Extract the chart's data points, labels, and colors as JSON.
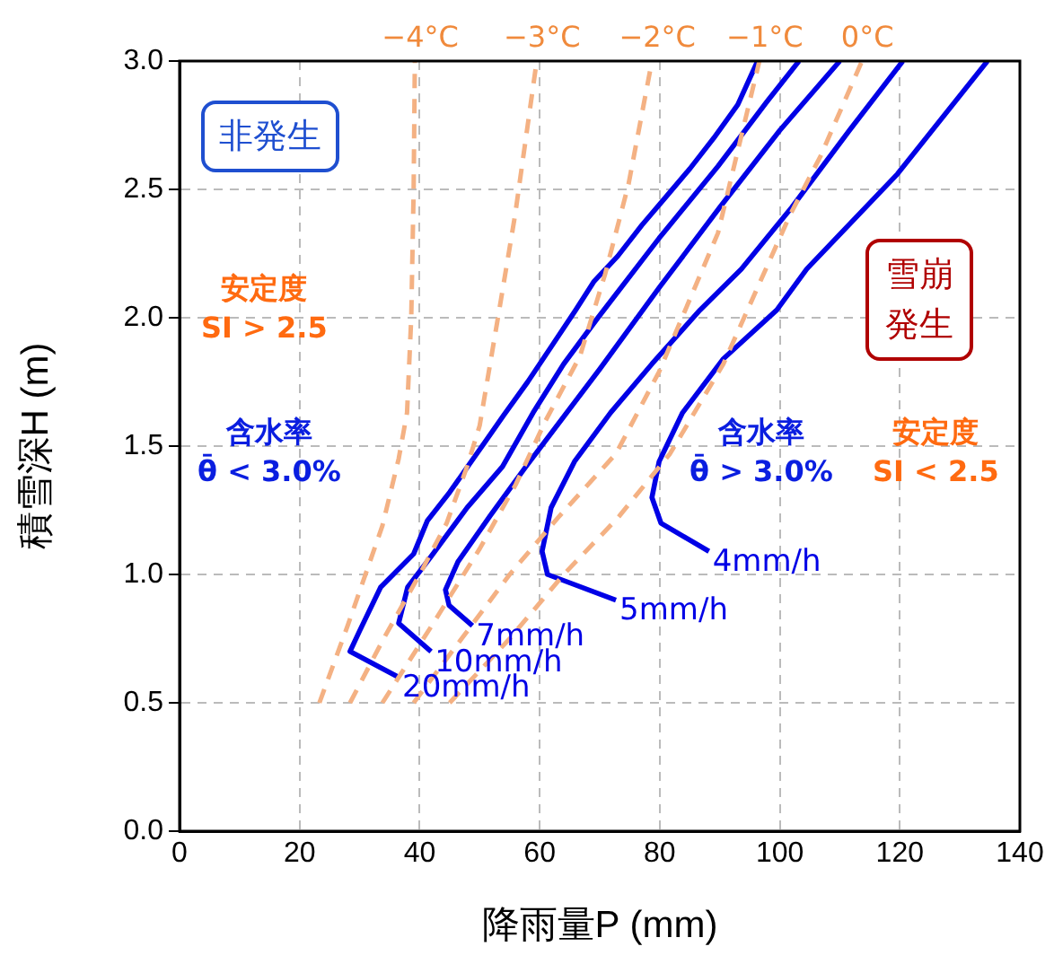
{
  "chart_data": {
    "type": "line",
    "xlabel": "降雨量P (mm)",
    "ylabel": "積雪深H (m)",
    "xlim": [
      0,
      140
    ],
    "xticks": [
      0,
      20,
      40,
      60,
      80,
      100,
      120,
      140
    ],
    "ylim": [
      0,
      3
    ],
    "yticks": [
      {
        "value": 0,
        "label": "0.0"
      },
      {
        "value": 0.5,
        "label": "0.5"
      },
      {
        "value": 1,
        "label": "1.0"
      },
      {
        "value": 1.5,
        "label": "1.5"
      },
      {
        "value": 2,
        "label": "2.0"
      },
      {
        "value": 2.5,
        "label": "2.5"
      },
      {
        "value": 3,
        "label": "3.0"
      }
    ],
    "grid": true,
    "legend": false,
    "marker": "none",
    "series": [
      {
        "name": "−4°C",
        "color": "#f4b183",
        "line_style": "dashed",
        "x": [
          23.3,
          28,
          33.8,
          36.5,
          37.9,
          38.6,
          39,
          39.2
        ],
        "values": [
          0.5,
          0.8,
          1.19,
          1.45,
          1.63,
          2.0,
          2.5,
          3.0
        ]
      },
      {
        "name": "−3°C",
        "color": "#f4b183",
        "line_style": "dashed",
        "x": [
          28.4,
          34,
          40,
          44.5,
          47.9,
          50,
          52.9,
          55.9,
          58,
          59.5
        ],
        "values": [
          0.5,
          0.75,
          1.0,
          1.2,
          1.42,
          1.58,
          1.98,
          2.4,
          2.75,
          3.0
        ]
      },
      {
        "name": "−2°C",
        "color": "#f4b183",
        "line_style": "dashed",
        "x": [
          33.8,
          42,
          50,
          56,
          61,
          66.7,
          70.9,
          74.8,
          78.7
        ],
        "values": [
          0.5,
          0.8,
          1.1,
          1.35,
          1.6,
          1.85,
          2.17,
          2.52,
          3.0
        ]
      },
      {
        "name": "−1°C",
        "color": "#f4b183",
        "line_style": "dashed",
        "x": [
          39,
          47,
          55,
          63,
          72.7,
          79.9,
          89.7,
          96.6
        ],
        "values": [
          0.5,
          0.75,
          1.0,
          1.22,
          1.47,
          1.79,
          2.33,
          3.0
        ]
      },
      {
        "name": "0°C",
        "color": "#f4b183",
        "line_style": "dashed",
        "x": [
          45,
          55,
          64,
          73,
          81.7,
          90.6,
          101.7,
          106.8,
          113.7
        ],
        "values": [
          0.5,
          0.75,
          1.0,
          1.22,
          1.47,
          1.82,
          2.4,
          2.63,
          3.0
        ]
      },
      {
        "name": "20mm/h",
        "color": "#0000e6",
        "line_style": "solid",
        "x": [
          36.5,
          28.4,
          30,
          33.5,
          39,
          41.3,
          45,
          48,
          51,
          54,
          58,
          62,
          66,
          69,
          73,
          77,
          81,
          85,
          89,
          93,
          96.3
        ],
        "values": [
          0.6,
          0.7,
          0.78,
          0.95,
          1.08,
          1.21,
          1.32,
          1.42,
          1.52,
          1.62,
          1.75,
          1.89,
          2.03,
          2.14,
          2.24,
          2.36,
          2.47,
          2.58,
          2.7,
          2.83,
          3.0
        ]
      },
      {
        "name": "10mm/h",
        "color": "#0000e6",
        "line_style": "solid",
        "x": [
          41.9,
          36.5,
          38,
          41.9,
          47.9,
          53.8,
          58.9,
          64,
          69.7,
          79.9,
          89.7,
          97.8,
          103.2
        ],
        "values": [
          0.7,
          0.81,
          0.95,
          1.07,
          1.26,
          1.42,
          1.63,
          1.82,
          2.0,
          2.31,
          2.59,
          2.84,
          3.0
        ]
      },
      {
        "name": "7mm/h",
        "color": "#0000e6",
        "line_style": "solid",
        "x": [
          48.8,
          44.9,
          44.3,
          46.4,
          51.8,
          57.7,
          70,
          80,
          90,
          100,
          110
        ],
        "values": [
          0.8,
          0.88,
          0.94,
          1.05,
          1.23,
          1.42,
          1.8,
          2.12,
          2.43,
          2.73,
          3.0
        ]
      },
      {
        "name": "5mm/h",
        "color": "#0000e6",
        "line_style": "solid",
        "x": [
          72.7,
          61.3,
          60.4,
          61.9,
          65.8,
          71.8,
          78.7,
          86.7,
          93.6,
          102,
          111.6,
          120.5
        ],
        "values": [
          0.9,
          1.0,
          1.09,
          1.26,
          1.44,
          1.63,
          1.82,
          2.03,
          2.19,
          2.43,
          2.73,
          3.0
        ]
      },
      {
        "name": "4mm/h",
        "color": "#0000e6",
        "line_style": "solid",
        "x": [
          88.2,
          80.2,
          78.7,
          79.9,
          83.8,
          90.6,
          99.5,
          104.5,
          119.6,
          134.6
        ],
        "values": [
          1.09,
          1.2,
          1.3,
          1.44,
          1.63,
          1.84,
          2.03,
          2.19,
          2.56,
          3.0
        ]
      }
    ],
    "annotations": [
      "非発生",
      "雪崩発生",
      "安定度\nSI > 2.5",
      "含水率\nθ̄ < 3.0%",
      "含水率\nθ̄ > 3.0%",
      "安定度\nSI < 2.5"
    ]
  }
}
